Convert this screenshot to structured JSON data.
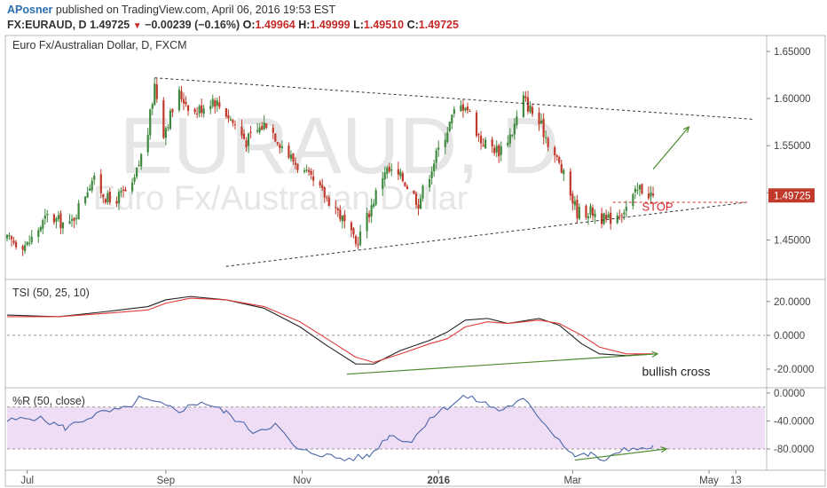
{
  "header": {
    "author": "APosner",
    "published_text": "published on TradingView.com, April 06, 2016 19:53 EST",
    "symbol": "FX:EURAUD, D",
    "last": "1.49725",
    "change_arrow": "▼",
    "change": "−0.00239 (−0.16%)",
    "open_label": "O:",
    "open": "1.49964",
    "high_label": "H:",
    "high": "1.49999",
    "low_label": "L:",
    "low": "1.49510",
    "close_label": "C:",
    "close": "1.49725"
  },
  "colors": {
    "up": "#3f8a3f",
    "down": "#c0392b",
    "tsi": "#222222",
    "signal": "#e23b3b",
    "pr": "#4a66a8",
    "band": "#efdcf5",
    "grid": "#c8c8c8",
    "trend": "#333333",
    "annotation": "#4e8a2e",
    "stop": "#d12b2b",
    "watermark": "#e6e6e6"
  },
  "chart_data": [
    {
      "type": "candlestick",
      "title": "Euro Fx/Australian Dollar, D, FXCM",
      "watermark": [
        "EURAUD, D",
        "Euro Fx/Australian Dollar"
      ],
      "ylim": [
        1.41,
        1.665
      ],
      "y_ticks": [
        "1.65000",
        "1.60000",
        "1.55000",
        "1.50000",
        "1.45000"
      ],
      "y_tick_values": [
        1.65,
        1.6,
        1.55,
        1.5,
        1.45
      ],
      "last_price_label": "1.49725",
      "last_price": 1.49725,
      "grid": false,
      "x_ticks": [
        "Jul",
        "Sep",
        "Nov",
        "2016",
        "Mar",
        "May",
        "13"
      ],
      "x_tick_dates": [
        "2015-07-01",
        "2015-09-01",
        "2015-11-01",
        "2016-01-01",
        "2016-03-01",
        "2016-05-01",
        "2016-05-13"
      ],
      "x_range": [
        "2015-06-22",
        "2016-05-26"
      ],
      "close_anchors": [
        [
          "2015-06-22",
          1.45
        ],
        [
          "2015-07-01",
          1.445
        ],
        [
          "2015-07-10",
          1.475
        ],
        [
          "2015-07-20",
          1.465
        ],
        [
          "2015-07-30",
          1.515
        ],
        [
          "2015-08-07",
          1.49
        ],
        [
          "2015-08-17",
          1.505
        ],
        [
          "2015-08-24",
          1.565
        ],
        [
          "2015-08-27",
          1.615
        ],
        [
          "2015-08-31",
          1.565
        ],
        [
          "2015-09-07",
          1.605
        ],
        [
          "2015-09-14",
          1.585
        ],
        [
          "2015-09-22",
          1.6
        ],
        [
          "2015-09-28",
          1.585
        ],
        [
          "2015-10-07",
          1.555
        ],
        [
          "2015-10-16",
          1.575
        ],
        [
          "2015-10-26",
          1.54
        ],
        [
          "2015-11-06",
          1.51
        ],
        [
          "2015-11-16",
          1.485
        ],
        [
          "2015-11-25",
          1.445
        ],
        [
          "2015-12-01",
          1.48
        ],
        [
          "2015-12-08",
          1.525
        ],
        [
          "2015-12-16",
          1.515
        ],
        [
          "2015-12-23",
          1.49
        ],
        [
          "2015-12-31",
          1.54
        ],
        [
          "2016-01-08",
          1.585
        ],
        [
          "2016-01-13",
          1.595
        ],
        [
          "2016-01-20",
          1.555
        ],
        [
          "2016-01-28",
          1.545
        ],
        [
          "2016-02-03",
          1.565
        ],
        [
          "2016-02-08",
          1.6
        ],
        [
          "2016-02-16",
          1.57
        ],
        [
          "2016-02-24",
          1.53
        ],
        [
          "2016-03-03",
          1.48
        ],
        [
          "2016-03-10",
          1.48
        ],
        [
          "2016-03-16",
          1.47
        ],
        [
          "2016-03-25",
          1.485
        ],
        [
          "2016-03-31",
          1.505
        ],
        [
          "2016-04-06",
          1.49725
        ]
      ],
      "annotations": {
        "upper_trendline": {
          "from": [
            "2015-08-27",
            1.622
          ],
          "to": [
            "2016-05-21",
            1.578
          ]
        },
        "lower_trendline": {
          "from": [
            "2015-09-28",
            1.422
          ],
          "to": [
            "2016-05-18",
            1.49
          ]
        },
        "stop_line": {
          "from": [
            "2016-03-19",
            1.49
          ],
          "to": [
            "2016-05-18",
            1.49
          ]
        },
        "stop_label": "STOP",
        "stop_label_at": [
          "2016-04-01",
          1.481
        ],
        "target_arrow": {
          "from": [
            "2016-04-06",
            1.525
          ],
          "to": [
            "2016-04-22",
            1.57
          ]
        }
      }
    },
    {
      "type": "line",
      "title": "TSI (50, 25, 10)",
      "ylim": [
        -30,
        32
      ],
      "y_ticks": [
        "20.0000",
        "0.0000",
        "-20.0000"
      ],
      "y_tick_values": [
        20,
        0,
        -20
      ],
      "zero_line": 0,
      "series": [
        {
          "name": "",
          "role": "tsi",
          "points": [
            [
              "2015-06-22",
              12
            ],
            [
              "2015-07-15",
              11
            ],
            [
              "2015-08-05",
              14
            ],
            [
              "2015-08-24",
              17
            ],
            [
              "2015-09-01",
              21
            ],
            [
              "2015-09-12",
              23
            ],
            [
              "2015-09-28",
              21
            ],
            [
              "2015-10-15",
              16
            ],
            [
              "2015-10-31",
              5
            ],
            [
              "2015-11-12",
              -6
            ],
            [
              "2015-11-25",
              -17
            ],
            [
              "2015-12-03",
              -17
            ],
            [
              "2015-12-15",
              -9
            ],
            [
              "2015-12-28",
              -3
            ],
            [
              "2016-01-05",
              2
            ],
            [
              "2016-01-13",
              9
            ],
            [
              "2016-01-23",
              10
            ],
            [
              "2016-02-01",
              7
            ],
            [
              "2016-02-15",
              10
            ],
            [
              "2016-02-24",
              6
            ],
            [
              "2016-03-05",
              -5
            ],
            [
              "2016-03-13",
              -11
            ],
            [
              "2016-03-25",
              -12
            ],
            [
              "2016-04-06",
              -11
            ]
          ]
        },
        {
          "name": "",
          "role": "signal",
          "points": [
            [
              "2015-06-22",
              11
            ],
            [
              "2015-07-15",
              11
            ],
            [
              "2015-08-05",
              13
            ],
            [
              "2015-08-24",
              15
            ],
            [
              "2015-09-01",
              19
            ],
            [
              "2015-09-12",
              22
            ],
            [
              "2015-09-28",
              21
            ],
            [
              "2015-10-15",
              17
            ],
            [
              "2015-10-31",
              8
            ],
            [
              "2015-11-12",
              -2
            ],
            [
              "2015-11-25",
              -13
            ],
            [
              "2015-12-03",
              -16
            ],
            [
              "2015-12-15",
              -11
            ],
            [
              "2015-12-28",
              -5
            ],
            [
              "2016-01-05",
              -2
            ],
            [
              "2016-01-13",
              5
            ],
            [
              "2016-01-23",
              8
            ],
            [
              "2016-02-01",
              7
            ],
            [
              "2016-02-15",
              9
            ],
            [
              "2016-02-24",
              7
            ],
            [
              "2016-03-05",
              0
            ],
            [
              "2016-03-13",
              -7
            ],
            [
              "2016-03-25",
              -11
            ],
            [
              "2016-04-06",
              -11
            ]
          ]
        }
      ],
      "annotations": {
        "divergence_arrow": {
          "from": [
            "2015-11-21",
            -23
          ],
          "to": [
            "2016-04-08",
            -11
          ]
        },
        "label": "bullish cross",
        "label_at": [
          "2016-04-01",
          -24
        ]
      }
    },
    {
      "type": "line",
      "title": "%R (50, close)",
      "ylim": [
        -108,
        5
      ],
      "y_ticks": [
        "0.0000",
        "-40.0000",
        "-80.0000"
      ],
      "y_tick_values": [
        0,
        -40,
        -80
      ],
      "band": [
        -80,
        -20
      ],
      "series": [
        {
          "name": "",
          "role": "pr",
          "points": [
            [
              "2015-06-22",
              -40
            ],
            [
              "2015-07-05",
              -35
            ],
            [
              "2015-07-18",
              -50
            ],
            [
              "2015-08-01",
              -30
            ],
            [
              "2015-08-15",
              -22
            ],
            [
              "2015-08-20",
              -8
            ],
            [
              "2015-08-28",
              -15
            ],
            [
              "2015-09-07",
              -25
            ],
            [
              "2015-09-17",
              -12
            ],
            [
              "2015-09-28",
              -28
            ],
            [
              "2015-10-10",
              -55
            ],
            [
              "2015-10-20",
              -45
            ],
            [
              "2015-10-30",
              -82
            ],
            [
              "2015-11-10",
              -88
            ],
            [
              "2015-11-20",
              -95
            ],
            [
              "2015-12-01",
              -90
            ],
            [
              "2015-12-10",
              -60
            ],
            [
              "2015-12-20",
              -70
            ],
            [
              "2015-12-28",
              -35
            ],
            [
              "2016-01-05",
              -20
            ],
            [
              "2016-01-12",
              -5
            ],
            [
              "2016-01-20",
              -12
            ],
            [
              "2016-01-28",
              -25
            ],
            [
              "2016-02-08",
              -10
            ],
            [
              "2016-02-14",
              -30
            ],
            [
              "2016-02-22",
              -60
            ],
            [
              "2016-03-02",
              -90
            ],
            [
              "2016-03-09",
              -88
            ],
            [
              "2016-03-16",
              -98
            ],
            [
              "2016-03-24",
              -78
            ],
            [
              "2016-04-01",
              -82
            ],
            [
              "2016-04-06",
              -75
            ]
          ]
        }
      ],
      "annotations": {
        "divergence_arrow": {
          "from": [
            "2016-03-02",
            -96
          ],
          "to": [
            "2016-04-12",
            -80
          ]
        }
      }
    }
  ]
}
